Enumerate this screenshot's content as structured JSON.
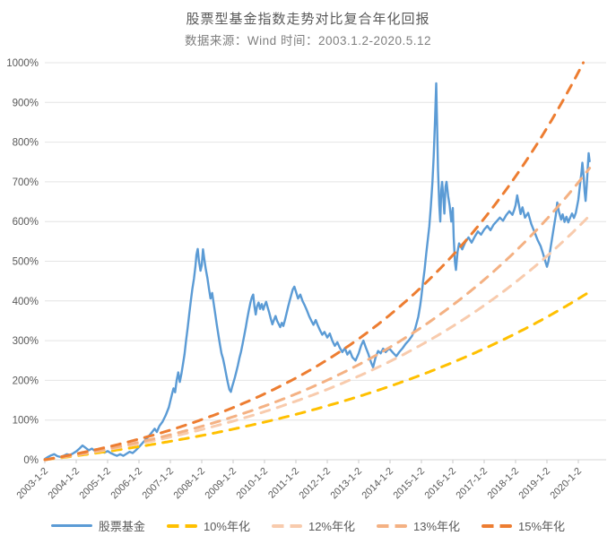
{
  "chart_data": {
    "type": "line",
    "title": "股票型基金指数走势对比复合年化回报",
    "subtitle": "数据来源：Wind 时间：2003.1.2-2020.5.12",
    "xlabel": "",
    "ylabel": "",
    "ylim": [
      0,
      1000
    ],
    "y_unit": "%",
    "y_ticks": [
      "0%",
      "100%",
      "200%",
      "300%",
      "400%",
      "500%",
      "600%",
      "700%",
      "800%",
      "900%",
      "1000%"
    ],
    "x_tick_labels": [
      "2003-1-2",
      "2004-1-2",
      "2005-1-2",
      "2006-1-2",
      "2007-1-2",
      "2008-1-2",
      "2009-1-2",
      "2010-1-2",
      "2011-1-2",
      "2012-1-2",
      "2013-1-2",
      "2014-1-2",
      "2015-1-2",
      "2016-1-2",
      "2017-1-2",
      "2018-1-2",
      "2019-1-2",
      "2020-1-2"
    ],
    "x_span_years": 17.36,
    "grid": "horizontal",
    "legend_position": "bottom",
    "series": [
      {
        "id": "stock-fund",
        "name": "股票基金",
        "style": "solid",
        "color": "#5B9BD5",
        "unit": "percent-return",
        "points": [
          [
            0,
            2
          ],
          [
            0.1,
            7
          ],
          [
            0.2,
            11
          ],
          [
            0.3,
            14
          ],
          [
            0.4,
            9
          ],
          [
            0.5,
            7
          ],
          [
            0.6,
            10
          ],
          [
            0.7,
            14
          ],
          [
            0.8,
            12
          ],
          [
            0.9,
            16
          ],
          [
            1,
            21
          ],
          [
            1.1,
            28
          ],
          [
            1.2,
            36
          ],
          [
            1.3,
            30
          ],
          [
            1.4,
            24
          ],
          [
            1.5,
            28
          ],
          [
            1.6,
            22
          ],
          [
            1.7,
            18
          ],
          [
            1.8,
            22
          ],
          [
            1.9,
            18
          ],
          [
            2,
            22
          ],
          [
            2.1,
            17
          ],
          [
            2.2,
            13
          ],
          [
            2.3,
            10
          ],
          [
            2.4,
            14
          ],
          [
            2.5,
            10
          ],
          [
            2.6,
            15
          ],
          [
            2.7,
            20
          ],
          [
            2.8,
            17
          ],
          [
            2.9,
            24
          ],
          [
            3,
            32
          ],
          [
            3.1,
            41
          ],
          [
            3.2,
            50
          ],
          [
            3.3,
            58
          ],
          [
            3.4,
            68
          ],
          [
            3.5,
            78
          ],
          [
            3.57,
            70
          ],
          [
            3.65,
            85
          ],
          [
            3.75,
            96
          ],
          [
            3.85,
            112
          ],
          [
            3.95,
            132
          ],
          [
            4,
            148
          ],
          [
            4.05,
            165
          ],
          [
            4.1,
            180
          ],
          [
            4.15,
            170
          ],
          [
            4.2,
            200
          ],
          [
            4.25,
            220
          ],
          [
            4.3,
            196
          ],
          [
            4.35,
            216
          ],
          [
            4.4,
            240
          ],
          [
            4.45,
            266
          ],
          [
            4.5,
            300
          ],
          [
            4.55,
            332
          ],
          [
            4.6,
            366
          ],
          [
            4.65,
            400
          ],
          [
            4.7,
            430
          ],
          [
            4.75,
            456
          ],
          [
            4.8,
            488
          ],
          [
            4.83,
            516
          ],
          [
            4.87,
            531
          ],
          [
            4.91,
            502
          ],
          [
            4.96,
            476
          ],
          [
            5,
            490
          ],
          [
            5.04,
            530
          ],
          [
            5.08,
            506
          ],
          [
            5.13,
            480
          ],
          [
            5.18,
            458
          ],
          [
            5.23,
            430
          ],
          [
            5.28,
            406
          ],
          [
            5.33,
            420
          ],
          [
            5.38,
            394
          ],
          [
            5.43,
            368
          ],
          [
            5.48,
            340
          ],
          [
            5.53,
            314
          ],
          [
            5.58,
            290
          ],
          [
            5.63,
            268
          ],
          [
            5.68,
            254
          ],
          [
            5.73,
            234
          ],
          [
            5.78,
            214
          ],
          [
            5.83,
            194
          ],
          [
            5.88,
            177
          ],
          [
            5.93,
            171
          ],
          [
            5.97,
            184
          ],
          [
            6,
            192
          ],
          [
            6.05,
            206
          ],
          [
            6.1,
            221
          ],
          [
            6.15,
            238
          ],
          [
            6.2,
            256
          ],
          [
            6.25,
            272
          ],
          [
            6.3,
            291
          ],
          [
            6.35,
            312
          ],
          [
            6.4,
            332
          ],
          [
            6.45,
            356
          ],
          [
            6.5,
            376
          ],
          [
            6.55,
            396
          ],
          [
            6.6,
            410
          ],
          [
            6.64,
            416
          ],
          [
            6.68,
            386
          ],
          [
            6.72,
            366
          ],
          [
            6.76,
            386
          ],
          [
            6.81,
            396
          ],
          [
            6.86,
            380
          ],
          [
            6.91,
            392
          ],
          [
            6.96,
            378
          ],
          [
            7,
            388
          ],
          [
            7.05,
            398
          ],
          [
            7.1,
            384
          ],
          [
            7.15,
            370
          ],
          [
            7.2,
            355
          ],
          [
            7.25,
            341
          ],
          [
            7.3,
            352
          ],
          [
            7.35,
            362
          ],
          [
            7.4,
            350
          ],
          [
            7.45,
            342
          ],
          [
            7.5,
            334
          ],
          [
            7.55,
            345
          ],
          [
            7.6,
            337
          ],
          [
            7.65,
            352
          ],
          [
            7.7,
            368
          ],
          [
            7.75,
            385
          ],
          [
            7.8,
            400
          ],
          [
            7.85,
            415
          ],
          [
            7.9,
            429
          ],
          [
            7.95,
            436
          ],
          [
            8,
            424
          ],
          [
            8.07,
            406
          ],
          [
            8.14,
            416
          ],
          [
            8.21,
            400
          ],
          [
            8.28,
            389
          ],
          [
            8.35,
            376
          ],
          [
            8.42,
            362
          ],
          [
            8.49,
            350
          ],
          [
            8.56,
            340
          ],
          [
            8.63,
            352
          ],
          [
            8.7,
            338
          ],
          [
            8.77,
            326
          ],
          [
            8.84,
            315
          ],
          [
            8.91,
            322
          ],
          [
            9,
            308
          ],
          [
            9.08,
            318
          ],
          [
            9.16,
            300
          ],
          [
            9.24,
            287
          ],
          [
            9.32,
            296
          ],
          [
            9.4,
            282
          ],
          [
            9.48,
            271
          ],
          [
            9.56,
            281
          ],
          [
            9.64,
            265
          ],
          [
            9.72,
            274
          ],
          [
            9.8,
            258
          ],
          [
            9.9,
            250
          ],
          [
            10,
            268
          ],
          [
            10.08,
            288
          ],
          [
            10.15,
            300
          ],
          [
            10.23,
            282
          ],
          [
            10.31,
            266
          ],
          [
            10.4,
            244
          ],
          [
            10.46,
            233
          ],
          [
            10.54,
            258
          ],
          [
            10.62,
            274
          ],
          [
            10.7,
            268
          ],
          [
            10.78,
            280
          ],
          [
            10.86,
            271
          ],
          [
            10.94,
            278
          ],
          [
            11,
            278
          ],
          [
            11.1,
            269
          ],
          [
            11.2,
            261
          ],
          [
            11.3,
            272
          ],
          [
            11.4,
            281
          ],
          [
            11.5,
            292
          ],
          [
            11.6,
            301
          ],
          [
            11.7,
            312
          ],
          [
            11.8,
            330
          ],
          [
            11.9,
            360
          ],
          [
            11.96,
            388
          ],
          [
            12,
            412
          ],
          [
            12.05,
            448
          ],
          [
            12.1,
            478
          ],
          [
            12.15,
            518
          ],
          [
            12.2,
            552
          ],
          [
            12.25,
            588
          ],
          [
            12.3,
            638
          ],
          [
            12.35,
            700
          ],
          [
            12.39,
            765
          ],
          [
            12.43,
            850
          ],
          [
            12.47,
            948
          ],
          [
            12.5,
            840
          ],
          [
            12.53,
            730
          ],
          [
            12.57,
            642
          ],
          [
            12.6,
            600
          ],
          [
            12.63,
            678
          ],
          [
            12.66,
            700
          ],
          [
            12.7,
            658
          ],
          [
            12.73,
            620
          ],
          [
            12.77,
            688
          ],
          [
            12.8,
            700
          ],
          [
            12.85,
            664
          ],
          [
            12.9,
            640
          ],
          [
            12.95,
            600
          ],
          [
            13,
            634
          ],
          [
            13.03,
            560
          ],
          [
            13.07,
            498
          ],
          [
            13.1,
            478
          ],
          [
            13.15,
            524
          ],
          [
            13.2,
            545
          ],
          [
            13.3,
            530
          ],
          [
            13.4,
            548
          ],
          [
            13.5,
            560
          ],
          [
            13.6,
            547
          ],
          [
            13.7,
            562
          ],
          [
            13.8,
            575
          ],
          [
            13.9,
            567
          ],
          [
            14,
            580
          ],
          [
            14.1,
            589
          ],
          [
            14.2,
            578
          ],
          [
            14.3,
            592
          ],
          [
            14.4,
            601
          ],
          [
            14.5,
            610
          ],
          [
            14.6,
            602
          ],
          [
            14.7,
            616
          ],
          [
            14.8,
            626
          ],
          [
            14.9,
            617
          ],
          [
            14.96,
            630
          ],
          [
            15,
            641
          ],
          [
            15.05,
            666
          ],
          [
            15.1,
            645
          ],
          [
            15.16,
            619
          ],
          [
            15.22,
            636
          ],
          [
            15.3,
            610
          ],
          [
            15.4,
            622
          ],
          [
            15.5,
            594
          ],
          [
            15.6,
            574
          ],
          [
            15.7,
            554
          ],
          [
            15.8,
            538
          ],
          [
            15.87,
            521
          ],
          [
            15.94,
            502
          ],
          [
            16,
            486
          ],
          [
            16.05,
            501
          ],
          [
            16.1,
            526
          ],
          [
            16.16,
            556
          ],
          [
            16.22,
            586
          ],
          [
            16.28,
            615
          ],
          [
            16.33,
            648
          ],
          [
            16.38,
            625
          ],
          [
            16.45,
            605
          ],
          [
            16.5,
            618
          ],
          [
            16.56,
            599
          ],
          [
            16.62,
            612
          ],
          [
            16.68,
            598
          ],
          [
            16.74,
            610
          ],
          [
            16.8,
            620
          ],
          [
            16.86,
            609
          ],
          [
            16.92,
            622
          ],
          [
            17,
            655
          ],
          [
            17.05,
            692
          ],
          [
            17.1,
            724
          ],
          [
            17.13,
            748
          ],
          [
            17.17,
            712
          ],
          [
            17.2,
            676
          ],
          [
            17.23,
            652
          ],
          [
            17.27,
            692
          ],
          [
            17.3,
            736
          ],
          [
            17.33,
            772
          ],
          [
            17.36,
            752
          ]
        ]
      },
      {
        "id": "10pct",
        "name": "10%年化",
        "style": "dashed",
        "color": "#FFC000",
        "annual_rate": 0.1,
        "end_value_pct": 423
      },
      {
        "id": "12pct",
        "name": "12%年化",
        "style": "dashed",
        "color": "#F8CBAD",
        "annual_rate": 0.12,
        "end_value_pct": 615
      },
      {
        "id": "13pct",
        "name": "13%年化",
        "style": "dashed",
        "color": "#F4B183",
        "annual_rate": 0.13,
        "end_value_pct": 735
      },
      {
        "id": "15pct",
        "name": "15%年化",
        "style": "dashed",
        "color": "#ED7D31",
        "end_value_pct": 1000,
        "annual_rate": 0.15
      }
    ],
    "colors": {
      "grid": "#e4e4e4",
      "axis_line": "#d6d6d6",
      "tick": "#c9c9c9",
      "axis_text": "#595959",
      "title_text": "#595959",
      "subtitle_text": "#7f7f7f",
      "background": "#ffffff"
    }
  }
}
